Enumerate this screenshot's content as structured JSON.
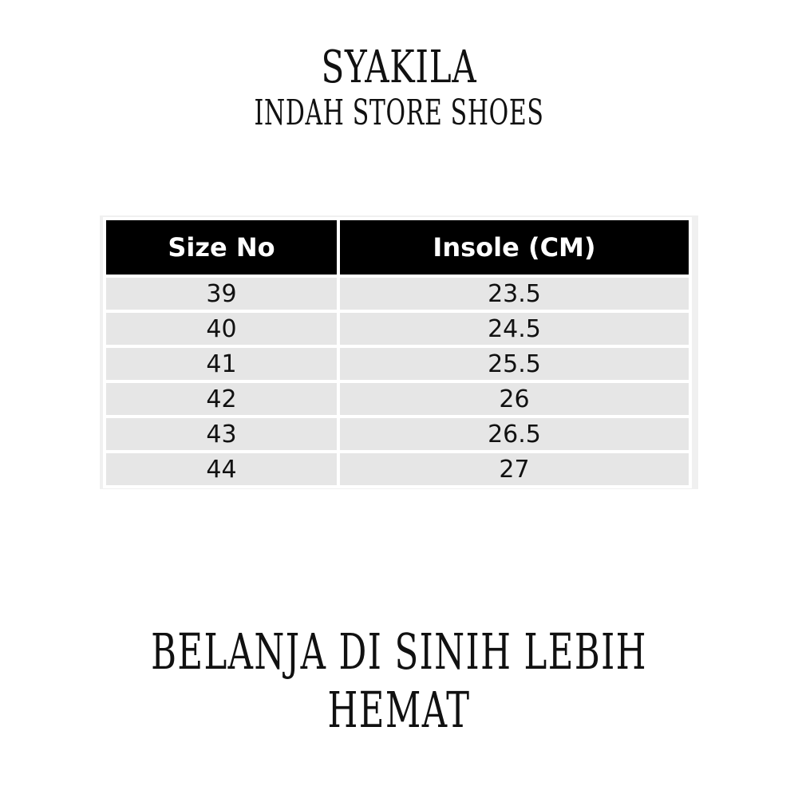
{
  "brand": {
    "name": "SYAKILA",
    "subtitle": "INDAH STORE SHOES"
  },
  "table": {
    "headers": [
      "Size No",
      "Insole (CM)"
    ],
    "rows": [
      [
        "39",
        "23.5"
      ],
      [
        "40",
        "24.5"
      ],
      [
        "41",
        "25.5"
      ],
      [
        "42",
        "26"
      ],
      [
        "43",
        "26.5"
      ],
      [
        "44",
        "27"
      ]
    ]
  },
  "slogan": "BELANJA DI SINIH LEBIH HEMAT"
}
